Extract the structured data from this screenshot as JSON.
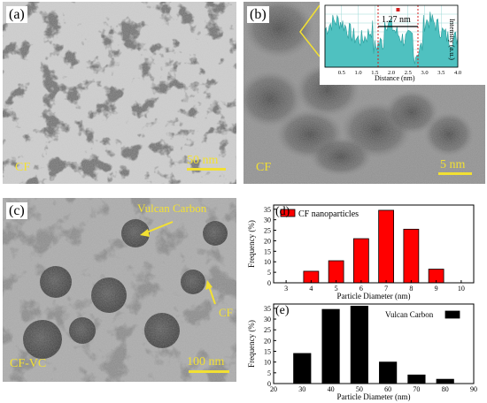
{
  "figure": {
    "panels": {
      "a": {
        "letter": "(a)",
        "sample": "CF",
        "scale_bar": "50 nm"
      },
      "b": {
        "letter": "(b)",
        "sample": "CF",
        "scale_bar": "5 nm",
        "inset": {
          "measurement": "1.27 nm",
          "xlabel": "Distance (nm)",
          "ylabel": "Intensity (a.u.)",
          "xticks": [
            "0.0",
            "0.5",
            "1.0",
            "1.5",
            "2.0",
            "2.5",
            "3.0",
            "3.5",
            "4.0"
          ]
        }
      },
      "c": {
        "letter": "(c)",
        "sample": "CF-VC",
        "scale_bar": "100 nm",
        "annotation_vc": "Vulcan Carbon",
        "annotation_cf": "CF"
      },
      "d": {
        "letter": "(d)"
      },
      "e": {
        "letter": "(e)"
      }
    },
    "colors": {
      "cf_bars": "#ff0000",
      "vc_bars": "#000000",
      "inset_fill": "#4fc1c0",
      "annotation": "#f2e032"
    }
  },
  "chart_data": [
    {
      "type": "bar",
      "panel": "d",
      "x": [
        4,
        5,
        6,
        7,
        8,
        9
      ],
      "values": [
        5.5,
        10.5,
        21,
        34.5,
        25.5,
        6.5
      ],
      "series": [
        {
          "name": "CF nanoparticles",
          "values": [
            5.5,
            10.5,
            21,
            34.5,
            25.5,
            6.5
          ]
        }
      ],
      "xlabel": "Particle Diameter (nm)",
      "ylabel": "Frequency (%)",
      "xlim": [
        2.5,
        10.5
      ],
      "ylim": [
        0,
        37
      ],
      "xticks": [
        "3",
        "4",
        "5",
        "6",
        "7",
        "8",
        "9",
        "10"
      ],
      "yticks": [
        "0",
        "5",
        "10",
        "15",
        "20",
        "25",
        "30",
        "35"
      ],
      "legend": "top-left"
    },
    {
      "type": "bar",
      "panel": "e",
      "x": [
        30,
        40,
        50,
        60,
        70,
        80
      ],
      "values": [
        14,
        34.5,
        36,
        10,
        4,
        2
      ],
      "series": [
        {
          "name": "Vulcan Carbon",
          "values": [
            14,
            34.5,
            36,
            10,
            4,
            2
          ]
        }
      ],
      "xlabel": "Particle Diameter (nm)",
      "ylabel": "Frequency (%)",
      "xlim": [
        20,
        90
      ],
      "ylim": [
        0,
        37
      ],
      "xticks": [
        "20",
        "30",
        "40",
        "50",
        "60",
        "70",
        "80",
        "90"
      ],
      "yticks": [
        "0",
        "5",
        "10",
        "15",
        "20",
        "25",
        "30",
        "35"
      ],
      "legend": "top-right"
    }
  ]
}
